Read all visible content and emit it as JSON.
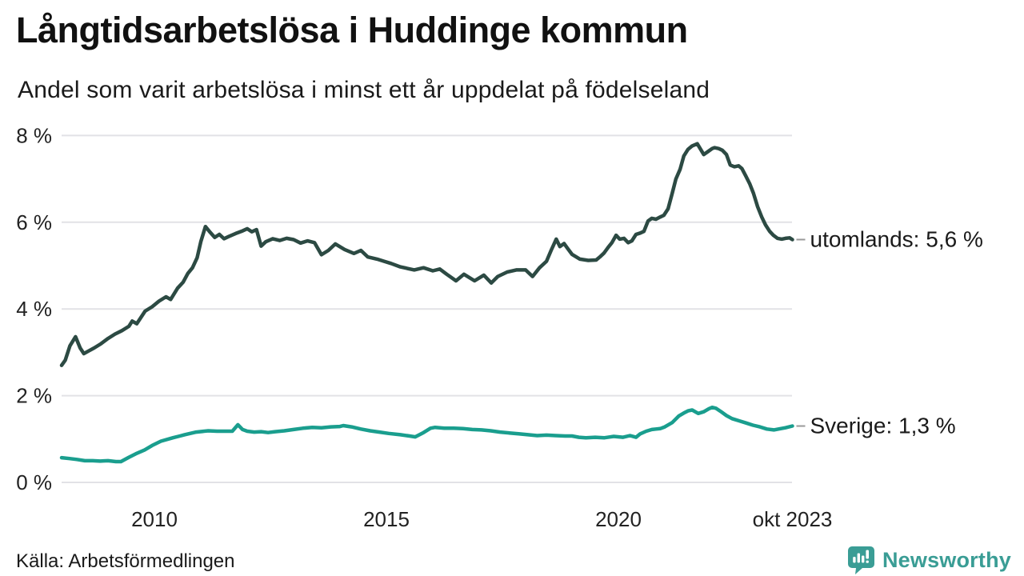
{
  "header": {
    "title": "Långtidsarbetslösa i Huddinge kommun",
    "subtitle": "Andel som varit arbetslösa i minst ett år uppdelat på födelseland"
  },
  "footer": {
    "source": "Källa: Arbetsförmedlingen",
    "brand": "Newsworthy"
  },
  "colors": {
    "utomlands_line": "#2c4a43",
    "sverige_line": "#1a9e8e",
    "gridline": "#e2e2e6",
    "tick_text": "#222222",
    "label_text": "#1a1a1a",
    "connector": "#999999",
    "brand_teal": "#3a9d95",
    "background": "#ffffff"
  },
  "chart_data": {
    "type": "line",
    "title": "Långtidsarbetslösa i Huddinge kommun",
    "subtitle": "Andel som varit arbetslösa i minst ett år uppdelat på födelseland",
    "unit": "%",
    "xlim": [
      2008.0,
      2023.83
    ],
    "ylim": [
      0,
      8
    ],
    "grid": "horizontal",
    "legend": "end-labels",
    "y_ticks": [
      {
        "value": 0,
        "label": "0 %"
      },
      {
        "value": 2,
        "label": "2 %"
      },
      {
        "value": 4,
        "label": "4 %"
      },
      {
        "value": 6,
        "label": "6 %"
      },
      {
        "value": 8,
        "label": "8 %"
      }
    ],
    "x_ticks": [
      {
        "value": 2010.0,
        "label": "2010"
      },
      {
        "value": 2015.0,
        "label": "2015"
      },
      {
        "value": 2020.0,
        "label": "2020"
      },
      {
        "value": 2023.75,
        "label": "okt 2023"
      }
    ],
    "series": [
      {
        "name": "utomlands",
        "end_label": "utomlands: 5,6 %",
        "last_value_display": "5,6 %",
        "color": "#2c4a43",
        "stroke_width": 4.5,
        "points": [
          [
            2008.0,
            2.7
          ],
          [
            2008.08,
            2.82
          ],
          [
            2008.18,
            3.15
          ],
          [
            2008.3,
            3.36
          ],
          [
            2008.4,
            3.1
          ],
          [
            2008.48,
            2.97
          ],
          [
            2008.58,
            3.03
          ],
          [
            2008.7,
            3.1
          ],
          [
            2008.85,
            3.2
          ],
          [
            2009.0,
            3.32
          ],
          [
            2009.15,
            3.42
          ],
          [
            2009.3,
            3.5
          ],
          [
            2009.45,
            3.6
          ],
          [
            2009.52,
            3.72
          ],
          [
            2009.62,
            3.66
          ],
          [
            2009.8,
            3.95
          ],
          [
            2009.95,
            4.05
          ],
          [
            2010.1,
            4.18
          ],
          [
            2010.25,
            4.28
          ],
          [
            2010.35,
            4.22
          ],
          [
            2010.5,
            4.48
          ],
          [
            2010.62,
            4.62
          ],
          [
            2010.72,
            4.82
          ],
          [
            2010.82,
            4.95
          ],
          [
            2010.92,
            5.18
          ],
          [
            2011.0,
            5.55
          ],
          [
            2011.1,
            5.9
          ],
          [
            2011.2,
            5.77
          ],
          [
            2011.3,
            5.65
          ],
          [
            2011.4,
            5.72
          ],
          [
            2011.5,
            5.62
          ],
          [
            2011.6,
            5.67
          ],
          [
            2011.75,
            5.74
          ],
          [
            2011.9,
            5.8
          ],
          [
            2012.0,
            5.85
          ],
          [
            2012.1,
            5.78
          ],
          [
            2012.2,
            5.83
          ],
          [
            2012.3,
            5.45
          ],
          [
            2012.4,
            5.55
          ],
          [
            2012.55,
            5.62
          ],
          [
            2012.7,
            5.58
          ],
          [
            2012.85,
            5.63
          ],
          [
            2013.0,
            5.6
          ],
          [
            2013.15,
            5.52
          ],
          [
            2013.3,
            5.57
          ],
          [
            2013.45,
            5.53
          ],
          [
            2013.6,
            5.25
          ],
          [
            2013.75,
            5.35
          ],
          [
            2013.9,
            5.5
          ],
          [
            2014.1,
            5.37
          ],
          [
            2014.3,
            5.28
          ],
          [
            2014.45,
            5.35
          ],
          [
            2014.6,
            5.2
          ],
          [
            2014.8,
            5.15
          ],
          [
            2014.95,
            5.1
          ],
          [
            2015.1,
            5.05
          ],
          [
            2015.3,
            4.97
          ],
          [
            2015.6,
            4.9
          ],
          [
            2015.8,
            4.95
          ],
          [
            2016.0,
            4.88
          ],
          [
            2016.15,
            4.92
          ],
          [
            2016.3,
            4.8
          ],
          [
            2016.5,
            4.65
          ],
          [
            2016.67,
            4.8
          ],
          [
            2016.9,
            4.65
          ],
          [
            2017.1,
            4.78
          ],
          [
            2017.26,
            4.6
          ],
          [
            2017.4,
            4.75
          ],
          [
            2017.6,
            4.85
          ],
          [
            2017.8,
            4.9
          ],
          [
            2018.0,
            4.9
          ],
          [
            2018.15,
            4.75
          ],
          [
            2018.3,
            4.95
          ],
          [
            2018.45,
            5.1
          ],
          [
            2018.55,
            5.35
          ],
          [
            2018.66,
            5.61
          ],
          [
            2018.74,
            5.44
          ],
          [
            2018.83,
            5.51
          ],
          [
            2018.91,
            5.39
          ],
          [
            2019.0,
            5.26
          ],
          [
            2019.17,
            5.15
          ],
          [
            2019.35,
            5.12
          ],
          [
            2019.52,
            5.13
          ],
          [
            2019.6,
            5.2
          ],
          [
            2019.69,
            5.29
          ],
          [
            2019.78,
            5.42
          ],
          [
            2019.86,
            5.53
          ],
          [
            2019.95,
            5.7
          ],
          [
            2020.03,
            5.61
          ],
          [
            2020.12,
            5.63
          ],
          [
            2020.21,
            5.53
          ],
          [
            2020.29,
            5.57
          ],
          [
            2020.38,
            5.72
          ],
          [
            2020.47,
            5.75
          ],
          [
            2020.55,
            5.79
          ],
          [
            2020.64,
            6.03
          ],
          [
            2020.72,
            6.09
          ],
          [
            2020.81,
            6.07
          ],
          [
            2020.9,
            6.12
          ],
          [
            2020.98,
            6.16
          ],
          [
            2021.07,
            6.31
          ],
          [
            2021.16,
            6.67
          ],
          [
            2021.24,
            7.0
          ],
          [
            2021.33,
            7.22
          ],
          [
            2021.41,
            7.53
          ],
          [
            2021.5,
            7.68
          ],
          [
            2021.59,
            7.76
          ],
          [
            2021.7,
            7.81
          ],
          [
            2021.84,
            7.56
          ],
          [
            2021.93,
            7.63
          ],
          [
            2022.02,
            7.7
          ],
          [
            2022.07,
            7.72
          ],
          [
            2022.16,
            7.7
          ],
          [
            2022.24,
            7.66
          ],
          [
            2022.33,
            7.56
          ],
          [
            2022.41,
            7.32
          ],
          [
            2022.5,
            7.28
          ],
          [
            2022.59,
            7.3
          ],
          [
            2022.66,
            7.24
          ],
          [
            2022.74,
            7.08
          ],
          [
            2022.83,
            6.89
          ],
          [
            2022.91,
            6.67
          ],
          [
            2023.0,
            6.36
          ],
          [
            2023.09,
            6.12
          ],
          [
            2023.17,
            5.94
          ],
          [
            2023.26,
            5.79
          ],
          [
            2023.34,
            5.7
          ],
          [
            2023.43,
            5.63
          ],
          [
            2023.52,
            5.61
          ],
          [
            2023.6,
            5.63
          ],
          [
            2023.69,
            5.64
          ],
          [
            2023.75,
            5.6
          ]
        ]
      },
      {
        "name": "Sverige",
        "end_label": "Sverige: 1,3 %",
        "last_value_display": "1,3 %",
        "color": "#1a9e8e",
        "stroke_width": 4.5,
        "points": [
          [
            2008.0,
            0.57
          ],
          [
            2008.17,
            0.55
          ],
          [
            2008.33,
            0.53
          ],
          [
            2008.5,
            0.5
          ],
          [
            2008.67,
            0.5
          ],
          [
            2008.83,
            0.49
          ],
          [
            2009.0,
            0.5
          ],
          [
            2009.17,
            0.48
          ],
          [
            2009.28,
            0.48
          ],
          [
            2009.45,
            0.58
          ],
          [
            2009.6,
            0.66
          ],
          [
            2009.79,
            0.75
          ],
          [
            2009.95,
            0.85
          ],
          [
            2010.14,
            0.95
          ],
          [
            2010.4,
            1.03
          ],
          [
            2010.55,
            1.07
          ],
          [
            2010.65,
            1.1
          ],
          [
            2010.9,
            1.16
          ],
          [
            2011.16,
            1.19
          ],
          [
            2011.35,
            1.18
          ],
          [
            2011.5,
            1.18
          ],
          [
            2011.68,
            1.18
          ],
          [
            2011.8,
            1.33
          ],
          [
            2011.9,
            1.22
          ],
          [
            2012.0,
            1.18
          ],
          [
            2012.15,
            1.16
          ],
          [
            2012.3,
            1.17
          ],
          [
            2012.45,
            1.15
          ],
          [
            2012.6,
            1.17
          ],
          [
            2012.8,
            1.19
          ],
          [
            2013.0,
            1.22
          ],
          [
            2013.2,
            1.25
          ],
          [
            2013.4,
            1.27
          ],
          [
            2013.6,
            1.26
          ],
          [
            2013.8,
            1.28
          ],
          [
            2014.0,
            1.29
          ],
          [
            2014.07,
            1.31
          ],
          [
            2014.25,
            1.28
          ],
          [
            2014.45,
            1.23
          ],
          [
            2014.65,
            1.19
          ],
          [
            2014.85,
            1.16
          ],
          [
            2015.05,
            1.13
          ],
          [
            2015.3,
            1.1
          ],
          [
            2015.5,
            1.07
          ],
          [
            2015.62,
            1.05
          ],
          [
            2015.8,
            1.15
          ],
          [
            2015.95,
            1.25
          ],
          [
            2016.05,
            1.27
          ],
          [
            2016.25,
            1.25
          ],
          [
            2016.45,
            1.25
          ],
          [
            2016.65,
            1.24
          ],
          [
            2016.85,
            1.22
          ],
          [
            2017.05,
            1.21
          ],
          [
            2017.25,
            1.19
          ],
          [
            2017.45,
            1.16
          ],
          [
            2017.65,
            1.14
          ],
          [
            2017.85,
            1.12
          ],
          [
            2018.05,
            1.1
          ],
          [
            2018.25,
            1.08
          ],
          [
            2018.45,
            1.09
          ],
          [
            2018.65,
            1.08
          ],
          [
            2018.85,
            1.07
          ],
          [
            2019.0,
            1.07
          ],
          [
            2019.15,
            1.04
          ],
          [
            2019.3,
            1.03
          ],
          [
            2019.5,
            1.04
          ],
          [
            2019.7,
            1.03
          ],
          [
            2019.9,
            1.06
          ],
          [
            2020.1,
            1.04
          ],
          [
            2020.25,
            1.08
          ],
          [
            2020.38,
            1.04
          ],
          [
            2020.47,
            1.12
          ],
          [
            2020.6,
            1.18
          ],
          [
            2020.72,
            1.22
          ],
          [
            2020.81,
            1.23
          ],
          [
            2020.9,
            1.24
          ],
          [
            2021.0,
            1.28
          ],
          [
            2021.16,
            1.38
          ],
          [
            2021.3,
            1.53
          ],
          [
            2021.41,
            1.6
          ],
          [
            2021.5,
            1.65
          ],
          [
            2021.59,
            1.67
          ],
          [
            2021.72,
            1.59
          ],
          [
            2021.84,
            1.63
          ],
          [
            2021.95,
            1.7
          ],
          [
            2022.02,
            1.73
          ],
          [
            2022.1,
            1.71
          ],
          [
            2022.2,
            1.64
          ],
          [
            2022.33,
            1.54
          ],
          [
            2022.45,
            1.47
          ],
          [
            2022.6,
            1.42
          ],
          [
            2022.75,
            1.37
          ],
          [
            2022.9,
            1.32
          ],
          [
            2023.05,
            1.28
          ],
          [
            2023.2,
            1.23
          ],
          [
            2023.35,
            1.21
          ],
          [
            2023.45,
            1.23
          ],
          [
            2023.6,
            1.26
          ],
          [
            2023.75,
            1.3
          ]
        ]
      }
    ]
  }
}
